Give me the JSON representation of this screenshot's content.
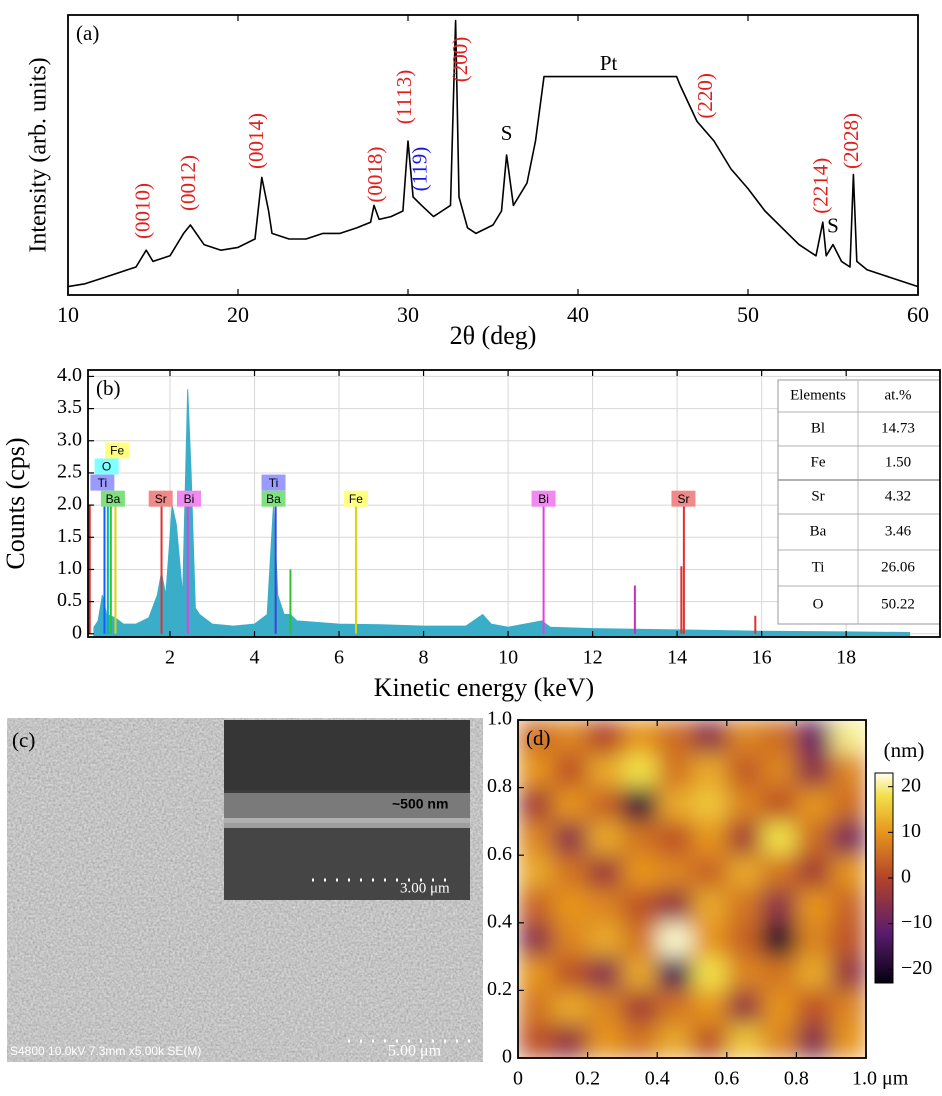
{
  "chart_data": [
    {
      "type": "line",
      "panel_label": "(a)",
      "xlabel": "2θ (deg)",
      "ylabel": "Intensity (arb. units)",
      "color": "#000000",
      "x": [
        10,
        11,
        12,
        13,
        14,
        14.6,
        15,
        16,
        16.8,
        17.2,
        18,
        19,
        20,
        21,
        21.4,
        21.8,
        22,
        23,
        24,
        25,
        26,
        27,
        27.8,
        28,
        28.3,
        29,
        29.7,
        30,
        30.3,
        30.8,
        31.5,
        32,
        32.5,
        32.8,
        33,
        33.5,
        34,
        35,
        35.5,
        35.8,
        36.2,
        37,
        37.5,
        38,
        45.8,
        46,
        47,
        48,
        49,
        50,
        51,
        52,
        53,
        54,
        54.4,
        54.6,
        55,
        55.5,
        56,
        56.2,
        56.4,
        57,
        58,
        59,
        60
      ],
      "values": [
        3,
        4,
        6,
        8,
        10,
        16,
        12,
        14,
        22,
        25,
        18,
        16,
        17,
        20,
        42,
        30,
        22,
        20,
        20,
        22,
        22,
        24,
        26,
        32,
        27,
        28,
        30,
        55,
        35,
        32,
        28,
        30,
        32,
        98,
        35,
        24,
        22,
        25,
        30,
        50,
        32,
        40,
        55,
        78,
        78,
        75,
        62,
        55,
        45,
        38,
        30,
        24,
        18,
        14,
        26,
        14,
        18,
        12,
        10,
        43,
        12,
        9,
        7,
        5,
        3
      ],
      "xlim": [
        10,
        60
      ],
      "xticks": [
        10,
        20,
        30,
        40,
        50,
        60
      ],
      "ylim": [
        0,
        100
      ],
      "annotations": [
        {
          "text": "(0010)",
          "x": 14.5,
          "y": 20,
          "color": "#e0201e"
        },
        {
          "text": "(0012)",
          "x": 17.2,
          "y": 30,
          "color": "#e0201e"
        },
        {
          "text": "(0014)",
          "x": 21.2,
          "y": 45,
          "color": "#e0201e"
        },
        {
          "text": "(0018)",
          "x": 28.2,
          "y": 33,
          "color": "#e0201e"
        },
        {
          "text": "(1113)",
          "x": 29.9,
          "y": 61,
          "color": "#e0201e"
        },
        {
          "text": "(119)",
          "x": 30.8,
          "y": 37,
          "color": "#1a1ae0"
        },
        {
          "text": "(200)",
          "x": 33.2,
          "y": 76,
          "color": "#e0201e"
        },
        {
          "text": "S",
          "x": 35.8,
          "y": 57,
          "color": "#000000"
        },
        {
          "text": "Pt",
          "x": 41.8,
          "y": 82,
          "color": "#000000"
        },
        {
          "text": "(220)",
          "x": 47.6,
          "y": 63,
          "color": "#e0201e"
        },
        {
          "text": "(2214)",
          "x": 54.4,
          "y": 29,
          "color": "#e0201e"
        },
        {
          "text": "S",
          "x": 55.0,
          "y": 24,
          "color": "#000000"
        },
        {
          "text": "(2028)",
          "x": 56.2,
          "y": 45,
          "color": "#e0201e"
        }
      ]
    },
    {
      "type": "area",
      "panel_label": "(b)",
      "xlabel": "Kinetic energy (keV)",
      "ylabel": "Counts (cps)",
      "color": "#3aaec8",
      "grid": true,
      "x": [
        0.2,
        0.3,
        0.4,
        0.5,
        0.7,
        0.9,
        1.2,
        1.5,
        1.7,
        1.8,
        1.9,
        2.0,
        2.05,
        2.15,
        2.3,
        2.42,
        2.5,
        2.6,
        2.7,
        3.0,
        3.5,
        4.0,
        4.3,
        4.45,
        4.55,
        4.7,
        4.85,
        5.0,
        6,
        7,
        8,
        9,
        9.4,
        9.6,
        10,
        10.8,
        11,
        12,
        13,
        14,
        16,
        18,
        19.5
      ],
      "values": [
        0.1,
        0.2,
        0.6,
        0.3,
        0.25,
        0.15,
        0.15,
        0.25,
        0.6,
        0.95,
        0.6,
        1.5,
        2.0,
        1.7,
        0.6,
        3.8,
        2.5,
        0.4,
        0.3,
        0.15,
        0.12,
        0.15,
        0.3,
        2.0,
        0.6,
        0.3,
        0.3,
        0.2,
        0.15,
        0.14,
        0.12,
        0.12,
        0.3,
        0.15,
        0.1,
        0.2,
        0.1,
        0.08,
        0.07,
        0.06,
        0.04,
        0.03,
        0.02
      ],
      "xlim": [
        0.06,
        20.22
      ],
      "xticks": [
        2,
        4,
        6,
        8,
        10,
        12,
        14,
        16,
        18
      ],
      "ylim": [
        -0.05,
        4.1
      ],
      "yticks": [
        0,
        0.5,
        {
          "value": 1,
          "label": "1.0"
        },
        1.5,
        {
          "value": 2,
          "label": "2.0"
        },
        2.5,
        {
          "value": 3,
          "label": "3.0"
        },
        3.5,
        {
          "value": 4,
          "label": "4.0"
        }
      ],
      "peaks": [
        {
          "x": 0.1,
          "height": 2.0,
          "color": "#e02020"
        },
        {
          "x": 0.45,
          "height": 2.1,
          "color": "#1060ff"
        },
        {
          "x": 0.53,
          "height": 2.2,
          "color": "#00b0c0"
        },
        {
          "x": 0.6,
          "height": 2.0,
          "color": "#30c030"
        },
        {
          "x": 0.71,
          "height": 2.1,
          "color": "#d8d800"
        },
        {
          "x": 1.8,
          "height": 2.0,
          "color": "#e03030"
        },
        {
          "x": 2.42,
          "height": 2.0,
          "color": "#e040e0"
        },
        {
          "x": 4.5,
          "height": 2.1,
          "color": "#4040e0"
        },
        {
          "x": 4.85,
          "height": 1.0,
          "color": "#30c030"
        },
        {
          "x": 6.4,
          "height": 2.0,
          "color": "#d8d800"
        },
        {
          "x": 10.84,
          "height": 2.0,
          "color": "#e040e0"
        },
        {
          "x": 13.0,
          "height": 0.75,
          "color": "#c030c0"
        },
        {
          "x": 14.1,
          "height": 1.05,
          "color": "#e03030"
        },
        {
          "x": 14.16,
          "height": 2.0,
          "color": "#e03030"
        },
        {
          "x": 15.85,
          "height": 0.28,
          "color": "#e03030"
        }
      ],
      "tags": [
        {
          "name": "Fe",
          "x": 0.75,
          "y": 2.85,
          "color": "#ffff80"
        },
        {
          "name": "O",
          "x": 0.5,
          "y": 2.6,
          "color": "#80ffff"
        },
        {
          "name": "Ti",
          "x": 0.4,
          "y": 2.35,
          "color": "#9a9aff"
        },
        {
          "name": "Ba",
          "x": 0.65,
          "y": 2.1,
          "color": "#80e080"
        },
        {
          "name": "Sr",
          "x": 1.78,
          "y": 2.1,
          "color": "#f08a8a"
        },
        {
          "name": "Bi",
          "x": 2.45,
          "y": 2.1,
          "color": "#f08af0"
        },
        {
          "name": "Ti",
          "x": 4.45,
          "y": 2.35,
          "color": "#9a9aff"
        },
        {
          "name": "Ba",
          "x": 4.45,
          "y": 2.1,
          "color": "#80e080"
        },
        {
          "name": "Fe",
          "x": 6.4,
          "y": 2.1,
          "color": "#ffff80"
        },
        {
          "name": "Bi",
          "x": 10.84,
          "y": 2.1,
          "color": "#f08af0"
        },
        {
          "name": "Sr",
          "x": 14.15,
          "y": 2.1,
          "color": "#f08a8a"
        }
      ],
      "table": {
        "header": [
          "Elements",
          "at.%"
        ],
        "rows": [
          [
            "Bl",
            "14.73"
          ],
          [
            "Fe",
            "1.50"
          ],
          [
            "Sr",
            "4.32"
          ],
          [
            "Ba",
            "3.46"
          ],
          [
            "Ti",
            "26.06"
          ],
          [
            "O",
            "50.22"
          ]
        ]
      }
    },
    {
      "type": "heatmap",
      "panel_label": "(d)",
      "colorbar_label": "(nm)",
      "xlim": [
        0,
        1
      ],
      "xticks": [
        0,
        0.2,
        0.4,
        0.6,
        0.8,
        {
          "value": 1,
          "label": "1.0 μm"
        }
      ],
      "ylim": [
        0,
        1
      ],
      "yticks": [
        0,
        0.2,
        0.4,
        0.6,
        0.8,
        {
          "value": 1,
          "label": "1.0"
        }
      ],
      "zlim": [
        -23,
        23
      ],
      "zticks": [
        {
          "value": -20,
          "label": "−20"
        },
        {
          "value": -10,
          "label": "−10"
        },
        0,
        10,
        20
      ],
      "colormap": [
        [
          -23,
          "#05000f"
        ],
        [
          -12,
          "#5a1c6e"
        ],
        [
          0,
          "#b3432a"
        ],
        [
          10,
          "#e6951e"
        ],
        [
          18,
          "#f2e04a"
        ],
        [
          23,
          "#fffff0"
        ]
      ],
      "values": [
        [
          5,
          8,
          0,
          10,
          5,
          -5,
          8,
          5,
          -10,
          20
        ],
        [
          10,
          2,
          12,
          18,
          6,
          12,
          3,
          8,
          -5,
          8
        ],
        [
          -2,
          10,
          4,
          -18,
          12,
          15,
          8,
          2,
          10,
          5
        ],
        [
          8,
          -5,
          12,
          6,
          2,
          10,
          -2,
          18,
          5,
          -8
        ],
        [
          12,
          6,
          -3,
          10,
          8,
          4,
          12,
          6,
          -2,
          10
        ],
        [
          4,
          10,
          8,
          2,
          -4,
          12,
          6,
          -5,
          10,
          4
        ],
        [
          -5,
          8,
          12,
          6,
          22,
          10,
          4,
          -20,
          8,
          2
        ],
        [
          10,
          2,
          -6,
          12,
          -15,
          18,
          8,
          6,
          12,
          -4
        ],
        [
          6,
          12,
          8,
          -2,
          6,
          10,
          -4,
          10,
          2,
          8
        ],
        [
          2,
          -4,
          10,
          6,
          12,
          2,
          15,
          8,
          -6,
          10
        ]
      ]
    }
  ],
  "sem_image": {
    "panel_label": "(c)",
    "info": "S4800 10.0kV 7.3mm x5.00k SE(M)",
    "scale": "5.00 μm",
    "inset_thickness": "~500 nm",
    "inset_scale": "3.00 μm"
  }
}
